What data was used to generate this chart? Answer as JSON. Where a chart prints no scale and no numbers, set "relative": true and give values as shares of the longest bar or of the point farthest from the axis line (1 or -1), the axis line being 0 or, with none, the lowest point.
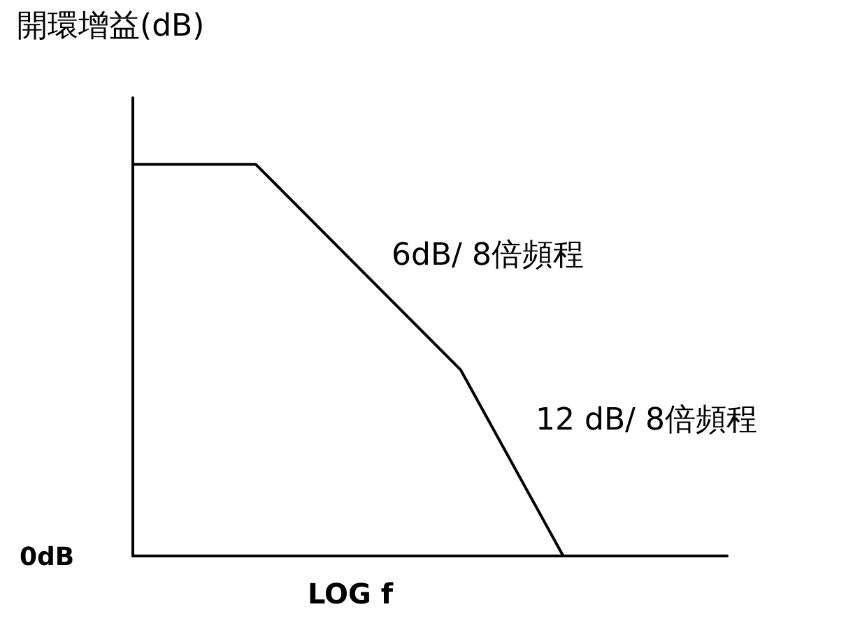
{
  "chart_data": {
    "type": "line",
    "relative": true,
    "ylabel": "開環增益(dB)",
    "xlabel": "LOG f",
    "categories": [
      null,
      null,
      null,
      null,
      null,
      null,
      null,
      null,
      null,
      null,
      null,
      null,
      null,
      null,
      null,
      null,
      null,
      null,
      null,
      null,
      null,
      null,
      null,
      null,
      null,
      null,
      null,
      null,
      null,
      null
    ],
    "series": [
      {
        "color": "#000000",
        "values": [
          1,
          null,
          null,
          null,
          null,
          null,
          1,
          null,
          null,
          null,
          null,
          null,
          null,
          null,
          null,
          null,
          0.475,
          null,
          null,
          null,
          null,
          0,
          null,
          null,
          null,
          null,
          null,
          null,
          null,
          null
        ]
      }
    ],
    "annotations": [
      "0dB",
      "6dB/ 8倍頻程",
      "12 dB/ 8倍頻程"
    ],
    "marker": "none",
    "line_style": "solid"
  }
}
